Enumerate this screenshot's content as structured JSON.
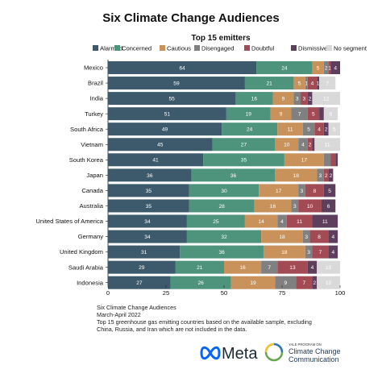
{
  "chart_data": {
    "type": "bar",
    "orientation": "horizontal",
    "stacked": true,
    "title": "Six Climate Change Audiences",
    "subtitle": "Top 15 emitters",
    "xlim": [
      0,
      100
    ],
    "xticks": [
      0,
      25,
      50,
      75,
      100
    ],
    "legend_position": "top",
    "categories": [
      "Mexico",
      "Brazil",
      "India",
      "Turkey",
      "South Africa",
      "Vietnam",
      "South Korea",
      "Japan",
      "Canada",
      "Australia",
      "United States of America",
      "Germany",
      "United Kingdom",
      "Saudi Arabia",
      "Indonesia"
    ],
    "series": [
      {
        "name": "Alarmed",
        "color": "#3d5a6c",
        "label_color": "#ffffff",
        "values": [
          64,
          59,
          55,
          51,
          49,
          45,
          41,
          36,
          35,
          35,
          34,
          34,
          31,
          29,
          27
        ]
      },
      {
        "name": "Concerned",
        "color": "#4e937c",
        "label_color": "#ffffff",
        "values": [
          24,
          21,
          16,
          19,
          24,
          27,
          35,
          36,
          30,
          28,
          25,
          32,
          36,
          21,
          26
        ]
      },
      {
        "name": "Cautious",
        "color": "#c9925a",
        "label_color": "#ffffff",
        "values": [
          5,
          5,
          9,
          9,
          11,
          10,
          17,
          18,
          17,
          16,
          14,
          18,
          18,
          16,
          19
        ]
      },
      {
        "name": "Disengaged",
        "color": "#808080",
        "label_color": "#ffffff",
        "values": [
          2,
          1,
          3,
          7,
          5,
          4,
          3,
          3,
          3,
          3,
          4,
          3,
          3,
          7,
          9
        ]
      },
      {
        "name": "Doubtful",
        "color": "#a24b55",
        "label_color": "#ffffff",
        "values": [
          1,
          4,
          3,
          5,
          4,
          2,
          2,
          2,
          8,
          10,
          11,
          8,
          7,
          13,
          7
        ]
      },
      {
        "name": "Dismissive",
        "color": "#5d3f5d",
        "label_color": "#ffffff",
        "values": [
          4,
          1,
          2,
          2,
          2,
          1,
          1,
          2,
          5,
          6,
          11,
          4,
          4,
          4,
          2
        ]
      },
      {
        "name": "No segment",
        "color": "#d9d9d9",
        "label_color": "#ffffff",
        "values": [
          0,
          7,
          12,
          6,
          5,
          11,
          0,
          0,
          0,
          0,
          0,
          0,
          0,
          10,
          10
        ]
      }
    ],
    "data_labels": [
      [
        "64",
        "24",
        "5",
        "2",
        "1",
        "4",
        ""
      ],
      [
        "59",
        "21",
        "5",
        "1",
        "4",
        "1",
        "7"
      ],
      [
        "55",
        "16",
        "9",
        "3",
        "3",
        "2",
        "12"
      ],
      [
        "51",
        "19",
        "9",
        "7",
        "5",
        "",
        "6"
      ],
      [
        "49",
        "24",
        "11",
        "5",
        "4",
        "2",
        "5"
      ],
      [
        "45",
        "27",
        "10",
        "4",
        "2",
        "",
        "11"
      ],
      [
        "41",
        "35",
        "17",
        "",
        "",
        "",
        ""
      ],
      [
        "36",
        "36",
        "18",
        "3",
        "2",
        "2",
        ""
      ],
      [
        "35",
        "30",
        "17",
        "3",
        "8",
        "5",
        ""
      ],
      [
        "35",
        "28",
        "16",
        "3",
        "10",
        "6",
        ""
      ],
      [
        "34",
        "25",
        "14",
        "4",
        "11",
        "11",
        ""
      ],
      [
        "34",
        "32",
        "18",
        "3",
        "8",
        "4",
        ""
      ],
      [
        "31",
        "36",
        "18",
        "3",
        "7",
        "4",
        ""
      ],
      [
        "29",
        "21",
        "16",
        "7",
        "13",
        "4",
        "10"
      ],
      [
        "27",
        "26",
        "19",
        "9",
        "7",
        "2",
        "10"
      ]
    ]
  },
  "notes": [
    "Six Climate Change Audiences",
    "March-April  2022",
    "Top 15 greenhouse gas emitting countries based on the available sample, excluding",
    "China, Russia, and Iran which are not included in the data."
  ],
  "logos": {
    "meta_text": "Meta",
    "yale_small": "YALE PROGRAM ON",
    "yale_line1": "Climate Change",
    "yale_line2": "Communication"
  }
}
